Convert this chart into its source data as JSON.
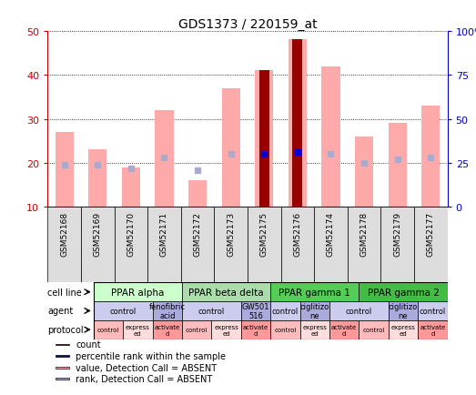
{
  "title": "GDS1373 / 220159_at",
  "samples": [
    "GSM52168",
    "GSM52169",
    "GSM52170",
    "GSM52171",
    "GSM52172",
    "GSM52173",
    "GSM52175",
    "GSM52176",
    "GSM52174",
    "GSM52178",
    "GSM52179",
    "GSM52177"
  ],
  "value_bars": [
    27,
    23,
    19,
    32,
    16,
    37,
    41,
    48,
    42,
    26,
    29,
    33
  ],
  "rank_bars": [
    24,
    24,
    22,
    28,
    21,
    30,
    30,
    31,
    30,
    25,
    27,
    28
  ],
  "count_bars": [
    null,
    null,
    null,
    null,
    null,
    null,
    41,
    48,
    null,
    null,
    null,
    null
  ],
  "count_rank_dots": [
    null,
    null,
    null,
    null,
    null,
    null,
    30,
    31,
    null,
    null,
    null,
    null
  ],
  "ylim_left": [
    10,
    50
  ],
  "ylim_right": [
    0,
    100
  ],
  "yticks_left": [
    10,
    20,
    30,
    40,
    50
  ],
  "yticks_right": [
    0,
    25,
    50,
    75,
    100
  ],
  "ytick_labels_right": [
    "0",
    "25",
    "50",
    "75",
    "100%"
  ],
  "cell_line_groups": [
    {
      "label": "PPAR alpha",
      "cols": [
        0,
        1,
        2
      ],
      "color": "#ccffcc"
    },
    {
      "label": "PPAR beta delta",
      "cols": [
        3,
        4,
        5
      ],
      "color": "#aaddaa"
    },
    {
      "label": "PPAR gamma 1",
      "cols": [
        6,
        7,
        8
      ],
      "color": "#55cc55"
    },
    {
      "label": "PPAR gamma 2",
      "cols": [
        9,
        10,
        11
      ],
      "color": "#44bb44"
    }
  ],
  "agent_groups": [
    {
      "label": "control",
      "cols": [
        0,
        1
      ],
      "color": "#ccccee"
    },
    {
      "label": "fenofibric\nacid",
      "cols": [
        2
      ],
      "color": "#aaaadd"
    },
    {
      "label": "control",
      "cols": [
        3,
        4
      ],
      "color": "#ccccee"
    },
    {
      "label": "GW501\n516",
      "cols": [
        5
      ],
      "color": "#aaaadd"
    },
    {
      "label": "control",
      "cols": [
        6
      ],
      "color": "#ccccee"
    },
    {
      "label": "ciglitizo\nne",
      "cols": [
        7
      ],
      "color": "#aaaadd"
    },
    {
      "label": "control",
      "cols": [
        8,
        9
      ],
      "color": "#ccccee"
    },
    {
      "label": "ciglitizo\nne",
      "cols": [
        10
      ],
      "color": "#aaaadd"
    },
    {
      "label": "control",
      "cols": [
        11
      ],
      "color": "#ccccee"
    }
  ],
  "protocol_groups": [
    {
      "label": "control",
      "color": "#ffbbbb"
    },
    {
      "label": "express\ned",
      "color": "#ffdddd"
    },
    {
      "label": "activate\nd",
      "color": "#ff9999"
    },
    {
      "label": "control",
      "color": "#ffbbbb"
    },
    {
      "label": "express\ned",
      "color": "#ffdddd"
    },
    {
      "label": "activate\nd",
      "color": "#ff9999"
    },
    {
      "label": "control",
      "color": "#ffbbbb"
    },
    {
      "label": "express\ned",
      "color": "#ffdddd"
    },
    {
      "label": "activate\nd",
      "color": "#ff9999"
    },
    {
      "label": "control",
      "color": "#ffbbbb"
    },
    {
      "label": "express\ned",
      "color": "#ffdddd"
    },
    {
      "label": "activate\nd",
      "color": "#ff9999"
    }
  ],
  "value_bar_color": "#ffaaaa",
  "rank_bar_color": "#aaaacc",
  "count_color": "#990000",
  "count_dot_color": "#0000cc",
  "bg_color": "#ffffff",
  "left_axis_color": "#cc0000",
  "right_axis_color": "#0000cc",
  "sample_bg_color": "#dddddd",
  "legend_items": [
    {
      "color": "#990000",
      "label": "count"
    },
    {
      "color": "#0000cc",
      "label": "percentile rank within the sample"
    },
    {
      "color": "#ffaaaa",
      "label": "value, Detection Call = ABSENT"
    },
    {
      "color": "#aaaacc",
      "label": "rank, Detection Call = ABSENT"
    }
  ]
}
